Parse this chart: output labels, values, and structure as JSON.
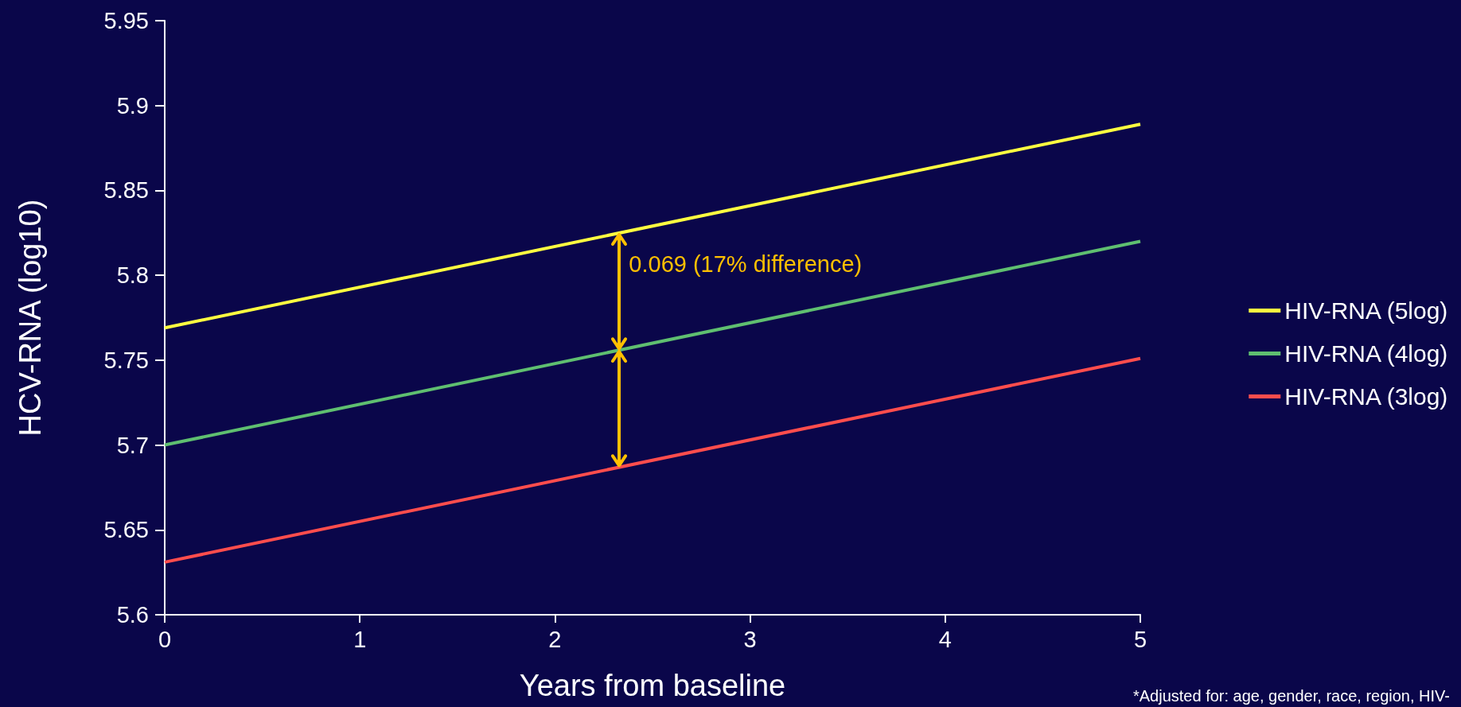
{
  "chart_data": {
    "type": "line",
    "xlabel": "Years from baseline",
    "ylabel": "HCV-RNA (log10)",
    "x": [
      0,
      5
    ],
    "series": [
      {
        "name": "HIV-RNA (5log)",
        "color": "#ffff40",
        "values": [
          5.769,
          5.889
        ]
      },
      {
        "name": "HIV-RNA (4log)",
        "color": "#5fbf70",
        "values": [
          5.7,
          5.82
        ]
      },
      {
        "name": "HIV-RNA (3log)",
        "color": "#ff4d4d",
        "values": [
          5.631,
          5.751
        ]
      }
    ],
    "xlim": [
      0,
      5
    ],
    "xticks": [
      0,
      1,
      2,
      3,
      4,
      5
    ],
    "ylim": [
      5.6,
      5.95
    ],
    "yticks": [
      5.6,
      5.65,
      5.7,
      5.75,
      5.8,
      5.85,
      5.9,
      5.95
    ],
    "grid": false,
    "legend": "right",
    "marker": "none",
    "line_style": "solid",
    "annotations": [
      {
        "text": "0.069 (17% difference)",
        "x": 2.33,
        "y": 5.756
      },
      "*Adjusted for: age, gender, race, region, HIV-"
    ]
  }
}
